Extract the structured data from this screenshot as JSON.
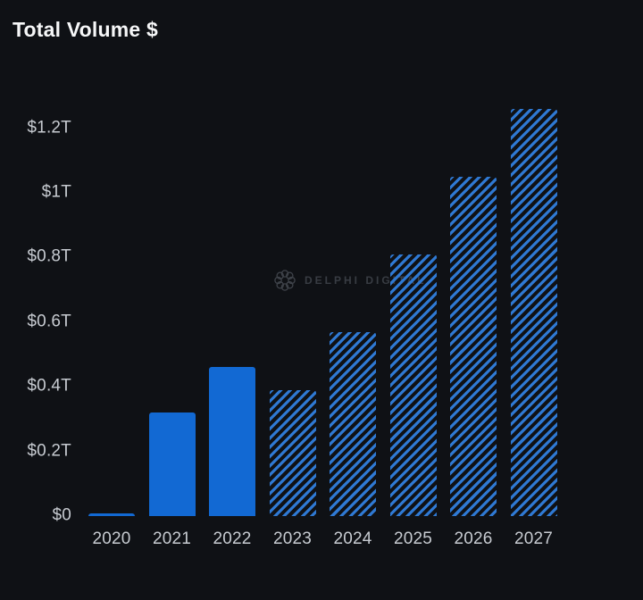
{
  "header": {
    "title": "Total Volume $"
  },
  "watermark": {
    "icon": "delphi-ring-icon",
    "text": "DELPHI DIGITAL"
  },
  "chart_data": {
    "type": "bar",
    "title": "Total Volume $",
    "categories": [
      "2020",
      "2021",
      "2022",
      "2023",
      "2024",
      "2025",
      "2026",
      "2027"
    ],
    "series": [
      {
        "name": "Total Volume $ (trillions)",
        "values": [
          0.007,
          0.32,
          0.46,
          0.39,
          0.57,
          0.81,
          1.05,
          1.26
        ],
        "styles": [
          "solid",
          "solid",
          "solid",
          "hatched",
          "hatched",
          "hatched",
          "hatched",
          "hatched"
        ]
      }
    ],
    "y_ticks": [
      {
        "label": "$0",
        "value": 0
      },
      {
        "label": "$0.2T",
        "value": 0.2
      },
      {
        "label": "$0.4T",
        "value": 0.4
      },
      {
        "label": "$0.6T",
        "value": 0.6
      },
      {
        "label": "$0.8T",
        "value": 0.8
      },
      {
        "label": "$1T",
        "value": 1.0
      },
      {
        "label": "$1.2T",
        "value": 1.2
      }
    ],
    "ylim": [
      0,
      1.32
    ],
    "xlabel": "",
    "ylabel": "",
    "grid": false,
    "legend_position": "none",
    "colors": {
      "background": "#0f1115",
      "solid_bar": "#1269d3",
      "hatch_stripe": "#2f79d3",
      "title_text": "#f6f7f8",
      "axis_label": "#c7cbd1",
      "watermark": "#3b3f46"
    }
  }
}
